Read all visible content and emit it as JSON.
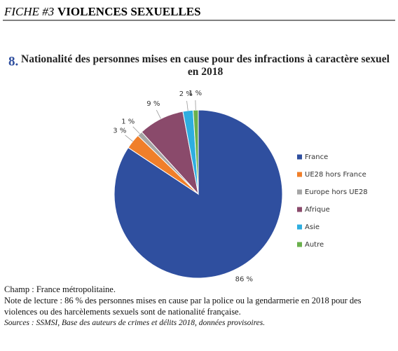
{
  "header": {
    "label": "FICHE #3",
    "title": "VIOLENCES SEXUELLES"
  },
  "chart_data": {
    "type": "pie",
    "number": "8.",
    "title": "Nationalité des personnes mises en cause pour des infractions à caractère sexuel en 2018",
    "categories": [
      "France",
      "UE28 hors France",
      "Europe hors UE28",
      "Afrique",
      "Asie",
      "Autre"
    ],
    "values": [
      86,
      3,
      1,
      9,
      2,
      1
    ],
    "value_labels": [
      "86 %",
      "3 %",
      "1 %",
      "9 %",
      "2 %",
      "1 %"
    ],
    "colors": [
      "#2f4f9f",
      "#f07f2a",
      "#a5a5a5",
      "#8a4a6b",
      "#2eaee0",
      "#6ab04c"
    ],
    "legend": "right"
  },
  "notes": [
    "Champ : France métropolitaine.",
    "Note de lecture : 86 % des personnes mises en cause par la police ou la gendarmerie en 2018 pour des violences ou des harcèlements sexuels sont de nationalité française.",
    "Sources : SSMSI, Base des auteurs de crimes et délits 2018, données provisoires."
  ]
}
